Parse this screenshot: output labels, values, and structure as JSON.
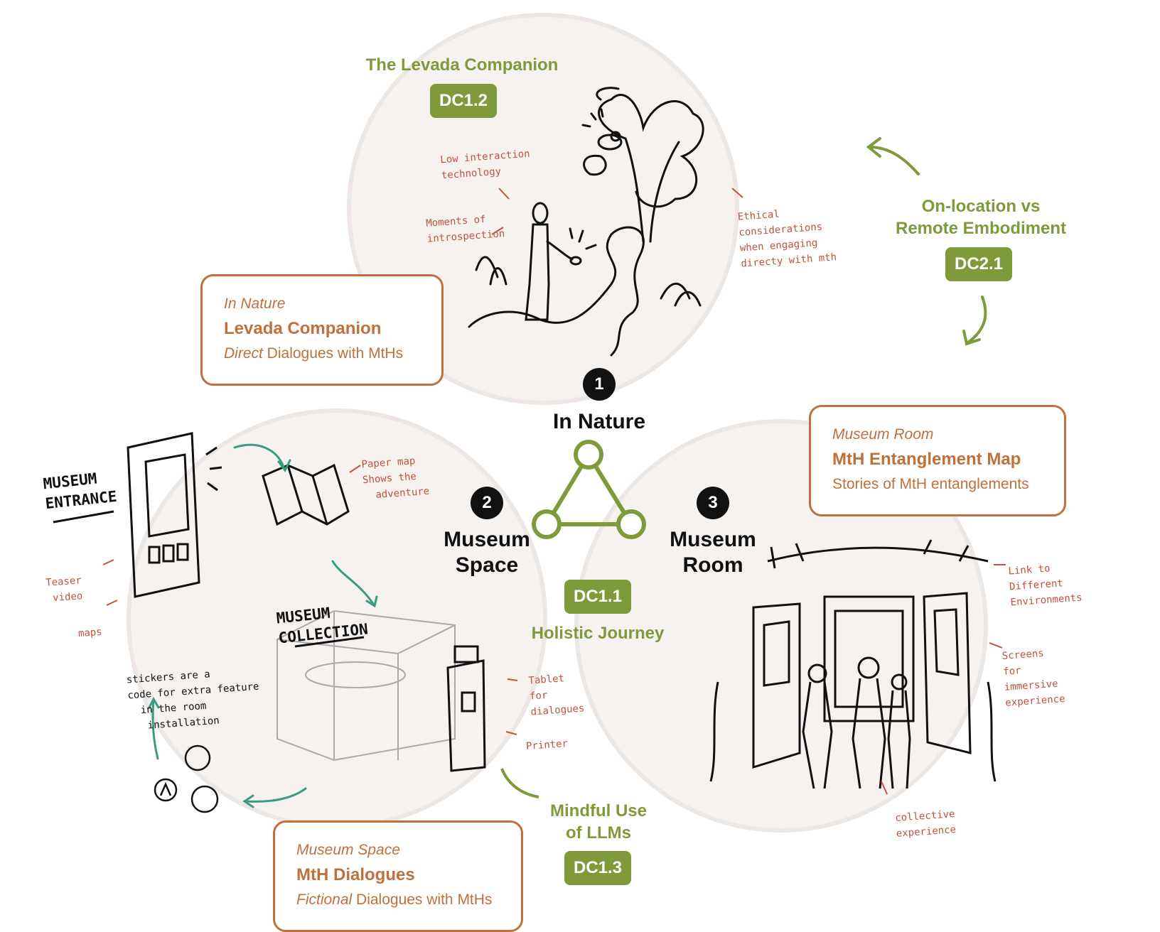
{
  "top": {
    "title": "The Levada Companion",
    "badge": "DC1.2",
    "notes": {
      "low_interaction": "Low interaction\ntechnology",
      "moments": "Moments of\nintrospection",
      "ethical": "Ethical\nconsiderations\nwhen engaging\ndirecty with mth"
    }
  },
  "embodiment": {
    "title_line1": "On-location vs",
    "title_line2": "Remote Embodiment",
    "badge": "DC2.1"
  },
  "areas": [
    {
      "number": "1",
      "line1": "In Nature",
      "line2": ""
    },
    {
      "number": "2",
      "line1": "Museum",
      "line2": "Space"
    },
    {
      "number": "3",
      "line1": "Museum",
      "line2": "Room"
    }
  ],
  "cards": {
    "nature": {
      "context": "In Nature",
      "title": "Levada Companion",
      "desc_em": "Direct",
      "desc_rest": " Dialogues with MtHs"
    },
    "room": {
      "context": "Museum Room",
      "title": "MtH Entanglement Map",
      "desc": "Stories of MtH entanglements"
    },
    "space": {
      "context": "Museum Space",
      "title": "MtH Dialogues",
      "desc_em": "Fictional",
      "desc_rest": " Dialogues with MtHs"
    }
  },
  "center": {
    "badge": "DC1.1",
    "label": "Holistic Journey"
  },
  "llm": {
    "line1": "Mindful Use",
    "line2": "of LLMs",
    "badge": "DC1.3"
  },
  "space_sketch": {
    "entrance": "MUSEUM\nENTRANCE",
    "collection": "MUSEUM\nCOLLECTION",
    "stickers": "stickers are a\ncode for extra feature\n  in the room\n   installation",
    "paper_map": "Paper map\nShows the\n  adventure",
    "teaser": "Teaser\n video",
    "maps": "maps",
    "tablet": "Tablet\nfor\ndialogues",
    "printer": "Printer"
  },
  "room_sketch": {
    "link": "Link to\nDifferent\nEnvironments",
    "screens": "Screens\nfor\nimmersive\nexperience",
    "collective": "collective\nexperience"
  },
  "colors": {
    "green": "#7e9a3b",
    "orange": "#c0703a",
    "note_red": "#c0533a",
    "teal": "#3a9a84",
    "circle_fill": "#f5f2f0"
  }
}
